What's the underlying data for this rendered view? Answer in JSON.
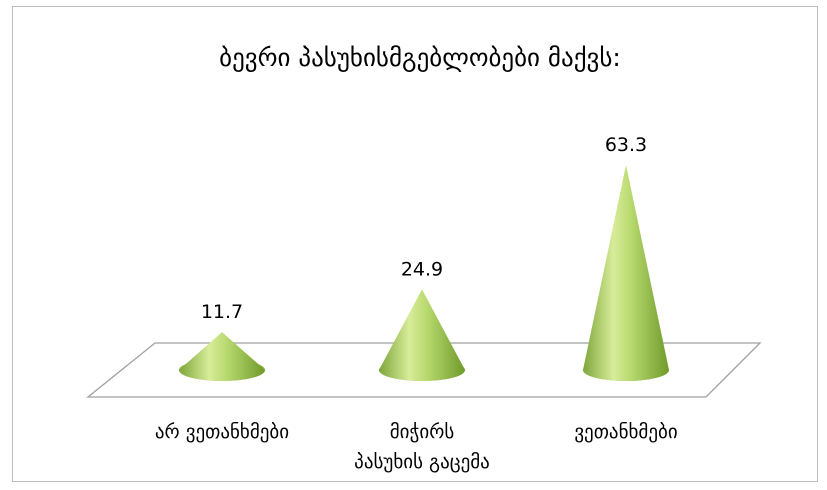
{
  "chart_data": {
    "type": "bar",
    "shape": "cone",
    "title": "ბევრი პასუხისმგებლობები მაქვს:",
    "categories": [
      [
        "არ ვეთანხმები"
      ],
      [
        "მიჭირს",
        "პასუხის გაცემა"
      ],
      [
        "ვეთანხმები"
      ]
    ],
    "values": [
      11.7,
      24.9,
      63.3
    ],
    "data_labels": [
      "11.7",
      "24.9",
      "63.3"
    ],
    "ylim": [
      0,
      70
    ],
    "legend": "none",
    "grid": false,
    "colors": {
      "cone_light": "#d9ec9c",
      "cone_mid": "#a6cc5a",
      "cone_dark": "#6f9a2a",
      "floor_line": "#a0a0a0"
    }
  }
}
